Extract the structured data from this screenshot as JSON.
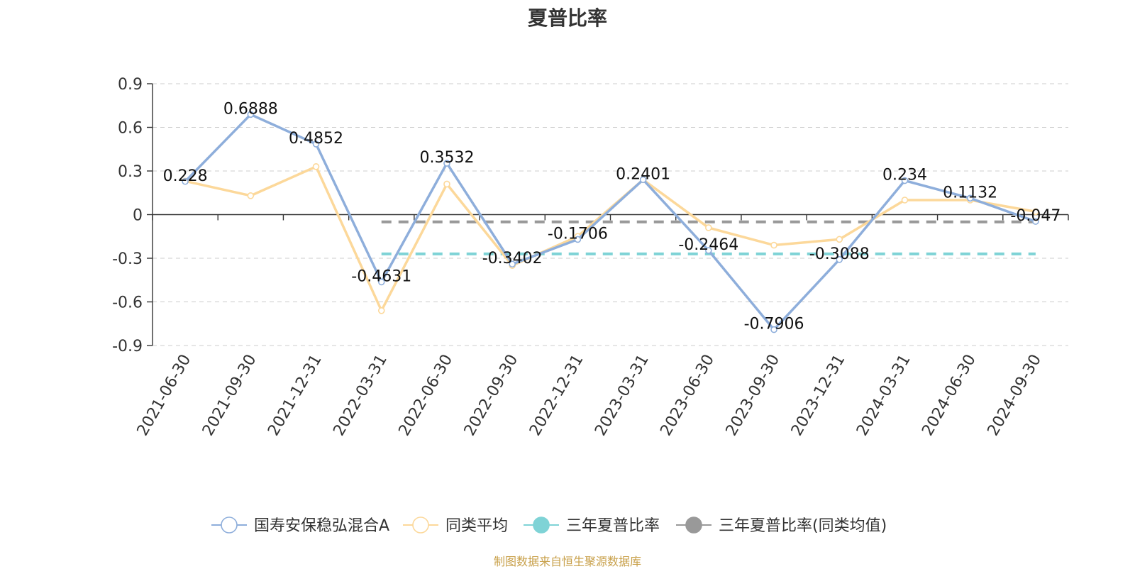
{
  "title": "夏普比率",
  "source_note": "制图数据来自恒生聚源数据库",
  "chart_data": {
    "type": "line",
    "title": "夏普比率",
    "categories": [
      "2021-06-30",
      "2021-09-30",
      "2021-12-31",
      "2022-03-31",
      "2022-06-30",
      "2022-09-30",
      "2022-12-31",
      "2023-03-31",
      "2023-06-30",
      "2023-09-30",
      "2023-12-31",
      "2024-03-31",
      "2024-06-30",
      "2024-09-30"
    ],
    "ylim": [
      -0.9,
      0.9
    ],
    "yticks": [
      0.9,
      0.6,
      0.3,
      0,
      -0.3,
      -0.6,
      -0.9
    ],
    "ytick_labels": [
      "0.9",
      "0.6",
      "0.3",
      "0",
      "-0.3",
      "-0.6",
      "-0.9"
    ],
    "grid": true,
    "legend_position": "bottom",
    "series": [
      {
        "name": "国寿安保稳弘混合A",
        "color": "#8eaedb",
        "values": [
          0.228,
          0.6888,
          0.4852,
          -0.4631,
          0.3532,
          -0.3402,
          -0.1706,
          0.2401,
          -0.2464,
          -0.7906,
          -0.3088,
          0.234,
          0.1132,
          -0.047
        ],
        "labels": [
          "0.228",
          "0.6888",
          "0.4852",
          "-0.4631",
          "0.3532",
          "-0.3402",
          "-0.1706",
          "0.2401",
          "-0.2464",
          "-0.7906",
          "-0.3088",
          "0.234",
          "0.1132",
          "-0.047"
        ]
      },
      {
        "name": "同类平均",
        "color": "#fcd89a",
        "values": [
          0.23,
          0.13,
          0.33,
          -0.66,
          0.21,
          -0.35,
          -0.15,
          0.24,
          -0.09,
          -0.21,
          -0.17,
          0.1,
          0.1,
          0.02
        ]
      }
    ],
    "reference_lines": [
      {
        "name": "三年夏普比率",
        "color": "#7fd3d6",
        "value": -0.27,
        "from": "2022-03-31",
        "to": "2024-09-30"
      },
      {
        "name": "三年夏普比率(同类均值)",
        "color": "#999999",
        "value": -0.05,
        "from": "2022-03-31",
        "to": "2024-09-30"
      }
    ]
  }
}
